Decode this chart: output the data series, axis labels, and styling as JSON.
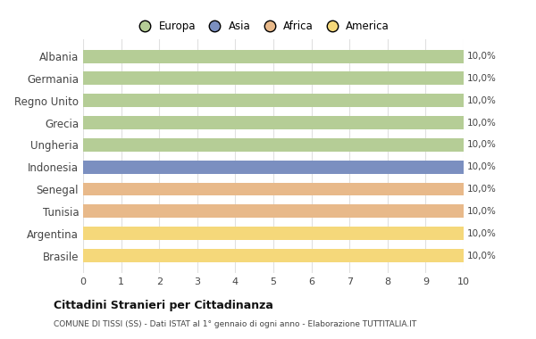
{
  "categories": [
    "Albania",
    "Germania",
    "Regno Unito",
    "Grecia",
    "Ungheria",
    "Indonesia",
    "Senegal",
    "Tunisia",
    "Argentina",
    "Brasile"
  ],
  "values": [
    10,
    10,
    10,
    10,
    10,
    10,
    10,
    10,
    10,
    10
  ],
  "colors": [
    "#b5cd96",
    "#b5cd96",
    "#b5cd96",
    "#b5cd96",
    "#b5cd96",
    "#7b8fc0",
    "#e8b98a",
    "#e8b98a",
    "#f5d87a",
    "#f5d87a"
  ],
  "bar_labels": [
    "10,0%",
    "10,0%",
    "10,0%",
    "10,0%",
    "10,0%",
    "10,0%",
    "10,0%",
    "10,0%",
    "10,0%",
    "10,0%"
  ],
  "xlim": [
    0,
    10
  ],
  "xticks": [
    0,
    1,
    2,
    3,
    4,
    5,
    6,
    7,
    8,
    9,
    10
  ],
  "legend_labels": [
    "Europa",
    "Asia",
    "Africa",
    "America"
  ],
  "legend_colors": [
    "#b5cd96",
    "#7b8fc0",
    "#e8b98a",
    "#f5d87a"
  ],
  "title": "Cittadini Stranieri per Cittadinanza",
  "subtitle": "COMUNE DI TISSI (SS) - Dati ISTAT al 1° gennaio di ogni anno - Elaborazione TUTTITALIA.IT",
  "background_color": "#ffffff",
  "grid_color": "#e0e0e0"
}
